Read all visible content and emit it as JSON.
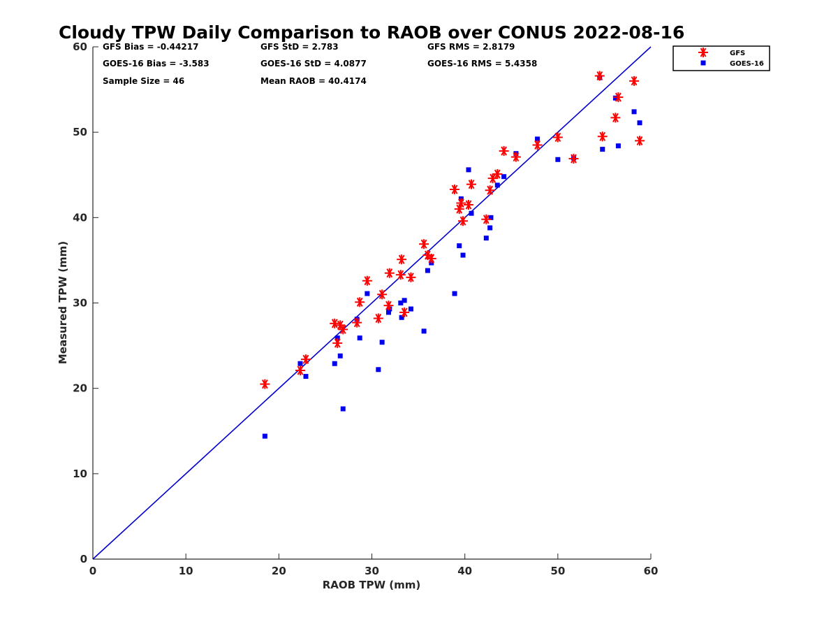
{
  "chart_data": {
    "type": "scatter",
    "title": "Cloudy TPW Daily Comparison to RAOB over CONUS 2022-08-16",
    "xlabel": "RAOB TPW (mm)",
    "ylabel": "Measured TPW (mm)",
    "xlim": [
      0,
      60
    ],
    "ylim": [
      0,
      60
    ],
    "xticks": [
      "0",
      "10",
      "20",
      "30",
      "40",
      "50",
      "60"
    ],
    "yticks": [
      "0",
      "10",
      "20",
      "30",
      "40",
      "50",
      "60"
    ],
    "grid": false,
    "legend_position": "outside-top-right",
    "one_to_one_line": {
      "from": [
        0,
        0
      ],
      "to": [
        60,
        60
      ],
      "color": "#0000cc"
    },
    "stats": [
      {
        "key": "gfs_bias",
        "text": "GFS Bias = -0.44217"
      },
      {
        "key": "gfs_std",
        "text": "GFS StD = 2.783"
      },
      {
        "key": "gfs_rms",
        "text": "GFS RMS = 2.8179"
      },
      {
        "key": "goes_bias",
        "text": "GOES-16 Bias = -3.583"
      },
      {
        "key": "goes_std",
        "text": "GOES-16 StD = 4.0877"
      },
      {
        "key": "goes_rms",
        "text": "GOES-16 RMS = 5.4358"
      },
      {
        "key": "sample_size",
        "text": "Sample Size = 46"
      },
      {
        "key": "mean_raob",
        "text": "Mean RAOB = 40.4174"
      }
    ],
    "series": [
      {
        "name": "GFS",
        "marker": "asterisk",
        "color": "#ff0000",
        "x": [
          18.5,
          22.3,
          22.9,
          26.0,
          26.3,
          26.6,
          26.9,
          28.4,
          28.7,
          29.5,
          30.7,
          31.1,
          31.8,
          31.9,
          33.1,
          33.2,
          33.5,
          34.2,
          35.6,
          36.0,
          36.4,
          38.9,
          39.4,
          39.6,
          39.8,
          40.4,
          40.7,
          42.3,
          42.7,
          43.0,
          43.5,
          44.2,
          45.5,
          47.8,
          50.0,
          51.7,
          54.5,
          54.8,
          56.2,
          56.5,
          58.2,
          58.8
        ],
        "y": [
          20.5,
          22.1,
          23.4,
          27.6,
          25.3,
          27.4,
          26.9,
          27.7,
          30.1,
          32.6,
          28.2,
          31.0,
          29.7,
          33.5,
          33.3,
          35.1,
          28.9,
          33.0,
          36.9,
          35.6,
          35.2,
          43.3,
          41.0,
          41.7,
          39.6,
          41.5,
          43.9,
          39.8,
          43.2,
          44.6,
          45.1,
          47.8,
          47.1,
          48.5,
          49.4,
          46.9,
          56.6,
          49.5,
          51.7,
          54.1,
          56.0,
          49.0
        ]
      },
      {
        "name": "GOES-16",
        "marker": "square",
        "color": "#0000ee",
        "x": [
          18.5,
          22.3,
          22.9,
          26.0,
          26.3,
          26.6,
          26.9,
          28.4,
          28.7,
          29.5,
          30.7,
          31.1,
          31.8,
          31.9,
          33.1,
          33.2,
          33.5,
          34.2,
          35.6,
          36.0,
          36.4,
          38.9,
          39.4,
          39.6,
          39.8,
          40.4,
          40.7,
          42.3,
          42.7,
          42.8,
          43.5,
          44.2,
          45.5,
          47.8,
          50.0,
          51.7,
          54.5,
          54.8,
          56.2,
          56.5,
          58.2,
          58.8
        ],
        "y": [
          14.4,
          22.9,
          21.4,
          22.9,
          25.9,
          23.8,
          17.6,
          28.1,
          25.9,
          31.1,
          22.2,
          25.4,
          28.9,
          29.3,
          30.0,
          28.3,
          30.3,
          29.3,
          26.7,
          33.8,
          34.7,
          31.1,
          36.7,
          42.2,
          35.6,
          45.6,
          40.5,
          37.6,
          38.8,
          40.0,
          43.8,
          44.8,
          47.5,
          49.2,
          46.8,
          47.0,
          56.4,
          48.0,
          54.0,
          48.4,
          52.4,
          51.1
        ]
      }
    ]
  }
}
